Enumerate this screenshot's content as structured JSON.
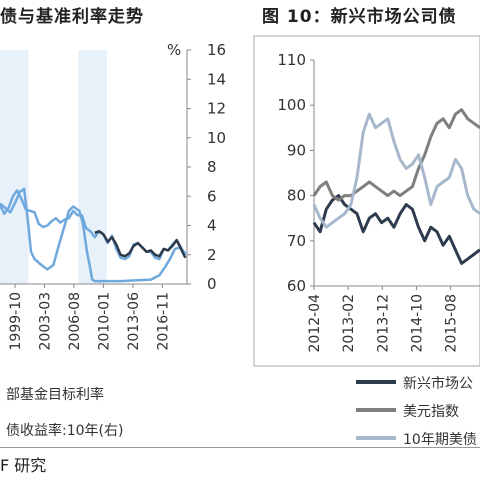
{
  "titles": {
    "left": "债与基准利率走势",
    "right": "图 10：新兴市场公司债"
  },
  "source": "F 研究",
  "chart_data": [
    {
      "type": "line",
      "title": "债与基准利率走势",
      "y_unit": "%",
      "ylim": [
        0,
        16
      ],
      "yticks": [
        "0",
        "2",
        "4",
        "6",
        "8",
        "10",
        "12",
        "14",
        "16"
      ],
      "x_ticks": [
        "1999-10",
        "2003-03",
        "2006-08",
        "2010-01",
        "2013-06",
        "2016-11"
      ],
      "x_tick_pos": [
        1999.75,
        2003.17,
        2006.58,
        2010.0,
        2013.42,
        2016.83
      ],
      "xlim": [
        1998.0,
        2019.7
      ],
      "shaded_ranges": [
        [
          1998.0,
          2001.3
        ],
        [
          2007.1,
          2010.4
        ]
      ],
      "series": [
        {
          "name": "部基金目标利率",
          "color": "#6fa8dc",
          "x": [
            1998.0,
            1998.6,
            1999.2,
            1999.8,
            2000.3,
            2000.8,
            2001.2,
            2001.6,
            2002.0,
            2002.8,
            2003.5,
            2004.2,
            2004.8,
            2005.4,
            2006.0,
            2006.5,
            2007.2,
            2007.6,
            2007.9,
            2008.1,
            2008.4,
            2008.7,
            2009.0,
            2012.0,
            2015.5,
            2016.5,
            2017.2,
            2017.8,
            2018.3,
            2018.9,
            2019.5
          ],
          "y": [
            5.5,
            5.2,
            4.9,
            5.6,
            6.3,
            6.5,
            4.5,
            2.2,
            1.7,
            1.3,
            1.0,
            1.3,
            2.6,
            3.8,
            5.0,
            5.3,
            5.0,
            4.2,
            3.0,
            2.2,
            1.3,
            0.3,
            0.2,
            0.2,
            0.3,
            0.6,
            1.2,
            1.8,
            2.4,
            2.5,
            2.1
          ]
        },
        {
          "name": "债收益率:10年(右)",
          "color": "#6fa8dc",
          "x": [
            1998.0,
            1998.5,
            1999.0,
            1999.5,
            2000.0,
            2000.5,
            2001.0,
            2001.5,
            2002.0,
            2002.5,
            2003.0,
            2003.5,
            2004.0,
            2004.5,
            2005.0,
            2005.5,
            2006.0,
            2006.5,
            2007.0,
            2007.5,
            2008.0,
            2008.5,
            2009.0,
            2009.5,
            2010.0,
            2010.5,
            2011.0,
            2011.5,
            2012.0,
            2012.5,
            2013.0,
            2013.5,
            2014.0,
            2014.5,
            2015.0,
            2015.5,
            2016.0,
            2016.5,
            2017.0,
            2017.5,
            2018.0,
            2018.5,
            2019.0,
            2019.5
          ],
          "y": [
            5.4,
            4.8,
            5.2,
            6.0,
            6.4,
            5.8,
            5.1,
            5.0,
            4.9,
            4.1,
            3.9,
            4.0,
            4.3,
            4.5,
            4.2,
            4.4,
            4.5,
            5.0,
            4.7,
            4.7,
            3.8,
            3.6,
            3.2,
            3.6,
            3.4,
            2.8,
            3.3,
            2.4,
            1.8,
            1.7,
            1.9,
            2.7,
            2.8,
            2.5,
            2.2,
            2.2,
            1.8,
            1.7,
            2.4,
            2.3,
            2.7,
            3.0,
            2.5,
            2.0
          ]
        },
        {
          "color": "#2d3a4a",
          "x": [
            2009.0,
            2009.5,
            2010.0,
            2010.5,
            2011.0,
            2011.5,
            2012.0,
            2012.5,
            2013.0,
            2013.5,
            2014.0,
            2014.5,
            2015.0,
            2015.5,
            2016.0,
            2016.5,
            2017.0,
            2017.5,
            2018.0,
            2018.5,
            2019.0,
            2019.5
          ],
          "y": [
            3.5,
            3.6,
            3.4,
            2.9,
            3.2,
            2.7,
            2.0,
            1.9,
            2.1,
            2.6,
            2.8,
            2.5,
            2.2,
            2.3,
            2.0,
            1.9,
            2.4,
            2.3,
            2.6,
            3.0,
            2.4,
            1.8
          ]
        }
      ]
    },
    {
      "type": "line",
      "title": "图 10：新兴市场公司债",
      "ylim": [
        60,
        110
      ],
      "yticks": [
        "60",
        "70",
        "80",
        "90",
        "100",
        "110"
      ],
      "x_ticks": [
        "2012-04",
        "2013-02",
        "2013-12",
        "2014-10",
        "2015-08"
      ],
      "x_tick_pos": [
        2012.25,
        2013.083,
        2013.917,
        2014.75,
        2015.583
      ],
      "xlim": [
        2012.25,
        2016.3
      ],
      "series": [
        {
          "name": "新兴市场公",
          "color": "#2e3b4e",
          "x": [
            2012.25,
            2012.4,
            2012.55,
            2012.7,
            2012.85,
            2013.0,
            2013.15,
            2013.3,
            2013.45,
            2013.6,
            2013.75,
            2013.9,
            2014.05,
            2014.2,
            2014.35,
            2014.5,
            2014.65,
            2014.8,
            2014.95,
            2015.1,
            2015.25,
            2015.4,
            2015.55,
            2015.7,
            2015.85,
            2016.0,
            2016.15,
            2016.3
          ],
          "y": [
            74,
            72,
            77,
            79,
            80,
            78,
            77,
            76,
            72,
            75,
            76,
            74,
            75,
            73,
            76,
            78,
            77,
            73,
            70,
            73,
            72,
            69,
            71,
            68,
            65,
            66,
            67,
            68
          ]
        },
        {
          "name": "美元指数",
          "color": "#7f7f7f",
          "x": [
            2012.25,
            2012.4,
            2012.55,
            2012.7,
            2012.85,
            2013.0,
            2013.15,
            2013.3,
            2013.45,
            2013.6,
            2013.75,
            2013.9,
            2014.05,
            2014.2,
            2014.35,
            2014.5,
            2014.65,
            2014.8,
            2014.95,
            2015.1,
            2015.25,
            2015.4,
            2015.55,
            2015.7,
            2015.85,
            2016.0,
            2016.15,
            2016.3
          ],
          "y": [
            80,
            82,
            83,
            80,
            79,
            80,
            80,
            81,
            82,
            83,
            82,
            81,
            80,
            81,
            80,
            81,
            82,
            86,
            89,
            93,
            96,
            97,
            95,
            98,
            99,
            97,
            96,
            95
          ]
        },
        {
          "name": "10年期美债",
          "color": "#a8b8cc",
          "x": [
            2012.25,
            2012.4,
            2012.55,
            2012.7,
            2012.85,
            2013.0,
            2013.15,
            2013.3,
            2013.45,
            2013.6,
            2013.75,
            2013.9,
            2014.05,
            2014.2,
            2014.35,
            2014.5,
            2014.65,
            2014.8,
            2014.95,
            2015.1,
            2015.25,
            2015.4,
            2015.55,
            2015.7,
            2015.85,
            2016.0,
            2016.15,
            2016.3
          ],
          "y": [
            78,
            75,
            73,
            74,
            75,
            76,
            78,
            84,
            94,
            98,
            95,
            96,
            97,
            92,
            88,
            86,
            87,
            89,
            84,
            78,
            82,
            83,
            84,
            88,
            86,
            80,
            77,
            76
          ]
        }
      ]
    }
  ]
}
